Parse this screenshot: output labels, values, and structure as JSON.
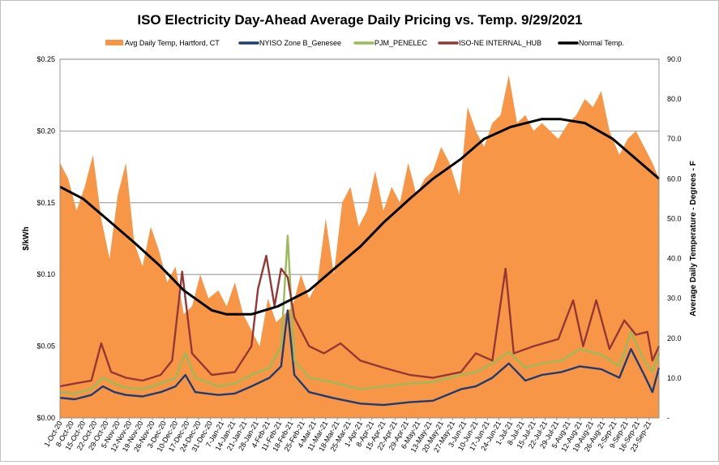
{
  "chart_data": {
    "type": "area+line",
    "title": "ISO Electricity Day-Ahead Average Daily Pricing vs. Temp. 9/29/2021",
    "ylabel": "$/kWh",
    "y2label": "Average Daily Temperature - Degrees - F",
    "ylim": [
      0,
      0.25
    ],
    "y2lim": [
      0,
      90
    ],
    "yticks": [
      "$0.00",
      "$0.05",
      "$0.10",
      "$0.15",
      "$0.20",
      "$0.25"
    ],
    "y2ticks": [
      "-",
      "10.0",
      "20.0",
      "30.0",
      "40.0",
      "50.0",
      "60.0",
      "70.0",
      "80.0",
      "90.0"
    ],
    "x_start": "2020-10-01",
    "x_end": "2021-09-29",
    "grid": true,
    "legend_position": "top",
    "x_tick_labels": [
      "1-Oct-20",
      "8-Oct-20",
      "15-Oct-20",
      "22-Oct-20",
      "29-Oct-20",
      "5-Nov-20",
      "12-Nov-20",
      "19-Nov-20",
      "26-Nov-20",
      "3-Dec-20",
      "10-Dec-20",
      "17-Dec-20",
      "24-Dec-20",
      "31-Dec-20",
      "7-Jan-21",
      "14-Jan-21",
      "21-Jan-21",
      "28-Jan-21",
      "4-Feb-21",
      "11-Feb-21",
      "18-Feb-21",
      "25-Feb-21",
      "4-Mar-21",
      "11-Mar-21",
      "18-Mar-21",
      "25-Mar-21",
      "1-Apr-21",
      "8-Apr-21",
      "15-Apr-21",
      "22-Apr-21",
      "29-Apr-21",
      "6-May-21",
      "13-May-21",
      "20-May-21",
      "27-May-21",
      "3-Jun-21",
      "10-Jun-21",
      "17-Jun-21",
      "24-Jun-21",
      "1-Jul-21",
      "8-Jul-21",
      "15-Jul-21",
      "22-Jul-21",
      "29-Jul-21",
      "5-Aug-21",
      "12-Aug-21",
      "19-Aug-21",
      "26-Aug-21",
      "2-Sep-21",
      "9-Sep-21",
      "16-Sep-21",
      "23-Sep-21"
    ],
    "series": [
      {
        "name": "Avg Daily Temp, Hartford, CT",
        "axis": "right",
        "kind": "area",
        "color": "#F79646",
        "points": [
          [
            "2020-10-01",
            64
          ],
          [
            "2020-10-06",
            60
          ],
          [
            "2020-10-11",
            52
          ],
          [
            "2020-10-16",
            58
          ],
          [
            "2020-10-21",
            66
          ],
          [
            "2020-10-26",
            50
          ],
          [
            "2020-10-31",
            40
          ],
          [
            "2020-11-05",
            56
          ],
          [
            "2020-11-10",
            64
          ],
          [
            "2020-11-15",
            44
          ],
          [
            "2020-11-20",
            38
          ],
          [
            "2020-11-25",
            48
          ],
          [
            "2020-11-30",
            42
          ],
          [
            "2020-12-05",
            34
          ],
          [
            "2020-12-10",
            38
          ],
          [
            "2020-12-15",
            26
          ],
          [
            "2020-12-20",
            28
          ],
          [
            "2020-12-25",
            36
          ],
          [
            "2020-12-30",
            30
          ],
          [
            "2021-01-05",
            32
          ],
          [
            "2021-01-10",
            28
          ],
          [
            "2021-01-15",
            34
          ],
          [
            "2021-01-20",
            26
          ],
          [
            "2021-01-25",
            22
          ],
          [
            "2021-01-30",
            18
          ],
          [
            "2021-02-04",
            30
          ],
          [
            "2021-02-09",
            24
          ],
          [
            "2021-02-14",
            26
          ],
          [
            "2021-02-19",
            28
          ],
          [
            "2021-02-24",
            36
          ],
          [
            "2021-03-01",
            30
          ],
          [
            "2021-03-06",
            34
          ],
          [
            "2021-03-11",
            50
          ],
          [
            "2021-03-16",
            36
          ],
          [
            "2021-03-21",
            54
          ],
          [
            "2021-03-26",
            58
          ],
          [
            "2021-03-31",
            48
          ],
          [
            "2021-04-05",
            52
          ],
          [
            "2021-04-10",
            62
          ],
          [
            "2021-04-15",
            52
          ],
          [
            "2021-04-20",
            58
          ],
          [
            "2021-04-25",
            54
          ],
          [
            "2021-04-30",
            64
          ],
          [
            "2021-05-05",
            56
          ],
          [
            "2021-05-10",
            60
          ],
          [
            "2021-05-15",
            62
          ],
          [
            "2021-05-20",
            68
          ],
          [
            "2021-05-25",
            64
          ],
          [
            "2021-05-31",
            56
          ],
          [
            "2021-06-05",
            78
          ],
          [
            "2021-06-10",
            72
          ],
          [
            "2021-06-15",
            68
          ],
          [
            "2021-06-20",
            74
          ],
          [
            "2021-06-25",
            76
          ],
          [
            "2021-06-30",
            86
          ],
          [
            "2021-07-05",
            74
          ],
          [
            "2021-07-10",
            76
          ],
          [
            "2021-07-15",
            72
          ],
          [
            "2021-07-20",
            74
          ],
          [
            "2021-07-25",
            72
          ],
          [
            "2021-07-30",
            70
          ],
          [
            "2021-08-05",
            74
          ],
          [
            "2021-08-10",
            76
          ],
          [
            "2021-08-15",
            80
          ],
          [
            "2021-08-20",
            78
          ],
          [
            "2021-08-25",
            82
          ],
          [
            "2021-08-30",
            72
          ],
          [
            "2021-09-05",
            66
          ],
          [
            "2021-09-10",
            70
          ],
          [
            "2021-09-15",
            72
          ],
          [
            "2021-09-20",
            68
          ],
          [
            "2021-09-25",
            64
          ],
          [
            "2021-09-29",
            60
          ]
        ]
      },
      {
        "name": "NYISO Zone B_Genesee",
        "axis": "left",
        "kind": "line",
        "color": "#1F3B73",
        "points": [
          [
            "2020-10-01",
            0.014
          ],
          [
            "2020-10-10",
            0.013
          ],
          [
            "2020-10-20",
            0.016
          ],
          [
            "2020-10-27",
            0.022
          ],
          [
            "2020-11-03",
            0.018
          ],
          [
            "2020-11-10",
            0.016
          ],
          [
            "2020-11-20",
            0.015
          ],
          [
            "2020-12-01",
            0.018
          ],
          [
            "2020-12-10",
            0.022
          ],
          [
            "2020-12-16",
            0.03
          ],
          [
            "2020-12-22",
            0.018
          ],
          [
            "2021-01-05",
            0.016
          ],
          [
            "2021-01-15",
            0.017
          ],
          [
            "2021-01-25",
            0.022
          ],
          [
            "2021-02-05",
            0.028
          ],
          [
            "2021-02-12",
            0.036
          ],
          [
            "2021-02-16",
            0.075
          ],
          [
            "2021-02-20",
            0.03
          ],
          [
            "2021-03-01",
            0.018
          ],
          [
            "2021-03-15",
            0.014
          ],
          [
            "2021-04-01",
            0.01
          ],
          [
            "2021-04-15",
            0.009
          ],
          [
            "2021-05-01",
            0.011
          ],
          [
            "2021-05-15",
            0.012
          ],
          [
            "2021-06-01",
            0.02
          ],
          [
            "2021-06-10",
            0.022
          ],
          [
            "2021-06-20",
            0.028
          ],
          [
            "2021-06-30",
            0.038
          ],
          [
            "2021-07-10",
            0.026
          ],
          [
            "2021-07-20",
            0.03
          ],
          [
            "2021-08-01",
            0.032
          ],
          [
            "2021-08-12",
            0.036
          ],
          [
            "2021-08-25",
            0.034
          ],
          [
            "2021-09-05",
            0.028
          ],
          [
            "2021-09-12",
            0.048
          ],
          [
            "2021-09-20",
            0.03
          ],
          [
            "2021-09-25",
            0.018
          ],
          [
            "2021-09-29",
            0.035
          ]
        ]
      },
      {
        "name": "PJM_PENELEC",
        "axis": "left",
        "kind": "line",
        "color": "#9BBB59",
        "points": [
          [
            "2020-10-01",
            0.018
          ],
          [
            "2020-10-10",
            0.017
          ],
          [
            "2020-10-20",
            0.02
          ],
          [
            "2020-10-27",
            0.028
          ],
          [
            "2020-11-03",
            0.024
          ],
          [
            "2020-11-10",
            0.021
          ],
          [
            "2020-11-20",
            0.02
          ],
          [
            "2020-12-01",
            0.024
          ],
          [
            "2020-12-10",
            0.028
          ],
          [
            "2020-12-16",
            0.045
          ],
          [
            "2020-12-22",
            0.028
          ],
          [
            "2021-01-05",
            0.022
          ],
          [
            "2021-01-15",
            0.024
          ],
          [
            "2021-01-25",
            0.03
          ],
          [
            "2021-02-05",
            0.035
          ],
          [
            "2021-02-12",
            0.05
          ],
          [
            "2021-02-16",
            0.127
          ],
          [
            "2021-02-20",
            0.04
          ],
          [
            "2021-03-01",
            0.028
          ],
          [
            "2021-03-15",
            0.025
          ],
          [
            "2021-04-01",
            0.02
          ],
          [
            "2021-04-15",
            0.022
          ],
          [
            "2021-05-01",
            0.024
          ],
          [
            "2021-05-15",
            0.025
          ],
          [
            "2021-06-01",
            0.03
          ],
          [
            "2021-06-10",
            0.032
          ],
          [
            "2021-06-20",
            0.038
          ],
          [
            "2021-06-30",
            0.046
          ],
          [
            "2021-07-10",
            0.035
          ],
          [
            "2021-07-20",
            0.038
          ],
          [
            "2021-08-01",
            0.04
          ],
          [
            "2021-08-12",
            0.048
          ],
          [
            "2021-08-25",
            0.044
          ],
          [
            "2021-09-05",
            0.036
          ],
          [
            "2021-09-12",
            0.06
          ],
          [
            "2021-09-20",
            0.04
          ],
          [
            "2021-09-25",
            0.032
          ],
          [
            "2021-09-29",
            0.045
          ]
        ]
      },
      {
        "name": "ISO-NE INTERNAL_HUB",
        "axis": "left",
        "kind": "line",
        "color": "#953735",
        "points": [
          [
            "2020-10-01",
            0.022
          ],
          [
            "2020-10-10",
            0.024
          ],
          [
            "2020-10-20",
            0.026
          ],
          [
            "2020-10-26",
            0.052
          ],
          [
            "2020-11-01",
            0.032
          ],
          [
            "2020-11-10",
            0.028
          ],
          [
            "2020-11-20",
            0.026
          ],
          [
            "2020-12-01",
            0.03
          ],
          [
            "2020-12-08",
            0.04
          ],
          [
            "2020-12-14",
            0.102
          ],
          [
            "2020-12-20",
            0.045
          ],
          [
            "2021-01-01",
            0.03
          ],
          [
            "2021-01-15",
            0.032
          ],
          [
            "2021-01-25",
            0.05
          ],
          [
            "2021-01-29",
            0.09
          ],
          [
            "2021-02-03",
            0.113
          ],
          [
            "2021-02-08",
            0.078
          ],
          [
            "2021-02-12",
            0.104
          ],
          [
            "2021-02-16",
            0.098
          ],
          [
            "2021-02-20",
            0.07
          ],
          [
            "2021-03-01",
            0.05
          ],
          [
            "2021-03-10",
            0.045
          ],
          [
            "2021-03-20",
            0.052
          ],
          [
            "2021-04-01",
            0.04
          ],
          [
            "2021-04-15",
            0.035
          ],
          [
            "2021-05-01",
            0.03
          ],
          [
            "2021-05-15",
            0.028
          ],
          [
            "2021-06-01",
            0.032
          ],
          [
            "2021-06-10",
            0.045
          ],
          [
            "2021-06-20",
            0.04
          ],
          [
            "2021-06-28",
            0.104
          ],
          [
            "2021-07-03",
            0.045
          ],
          [
            "2021-07-15",
            0.05
          ],
          [
            "2021-07-30",
            0.055
          ],
          [
            "2021-08-08",
            0.082
          ],
          [
            "2021-08-14",
            0.05
          ],
          [
            "2021-08-22",
            0.082
          ],
          [
            "2021-08-30",
            0.048
          ],
          [
            "2021-09-08",
            0.068
          ],
          [
            "2021-09-15",
            0.058
          ],
          [
            "2021-09-22",
            0.06
          ],
          [
            "2021-09-25",
            0.04
          ],
          [
            "2021-09-29",
            0.05
          ]
        ]
      },
      {
        "name": "Normal Temp.",
        "axis": "right",
        "kind": "line",
        "color": "#000000",
        "points": [
          [
            "2020-10-01",
            58
          ],
          [
            "2020-10-15",
            55
          ],
          [
            "2020-11-01",
            49
          ],
          [
            "2020-11-15",
            44
          ],
          [
            "2020-12-01",
            38
          ],
          [
            "2020-12-15",
            32
          ],
          [
            "2021-01-01",
            27
          ],
          [
            "2021-01-10",
            26
          ],
          [
            "2021-01-25",
            26
          ],
          [
            "2021-02-10",
            28
          ],
          [
            "2021-03-01",
            32
          ],
          [
            "2021-03-15",
            37
          ],
          [
            "2021-04-01",
            43
          ],
          [
            "2021-04-15",
            49
          ],
          [
            "2021-05-01",
            55
          ],
          [
            "2021-05-15",
            60
          ],
          [
            "2021-06-01",
            65
          ],
          [
            "2021-06-15",
            70
          ],
          [
            "2021-07-01",
            73
          ],
          [
            "2021-07-20",
            75
          ],
          [
            "2021-07-31",
            75
          ],
          [
            "2021-08-15",
            74
          ],
          [
            "2021-09-01",
            70
          ],
          [
            "2021-09-15",
            65
          ],
          [
            "2021-09-29",
            60
          ]
        ]
      }
    ]
  }
}
